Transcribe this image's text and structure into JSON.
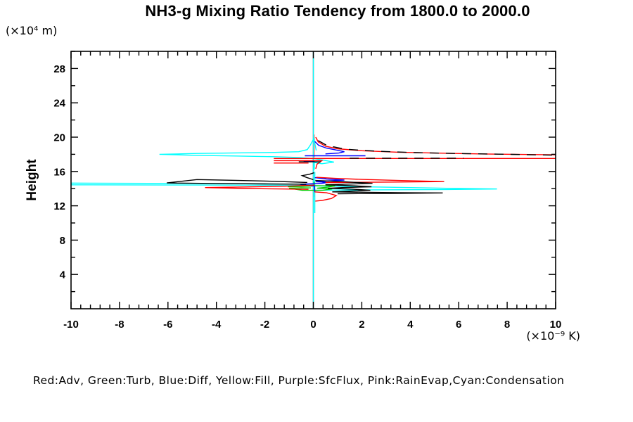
{
  "header": {
    "title": "NH3-g Mixing Ratio Tendency from 1800.0 to 2000.0"
  },
  "labels": {
    "y_unit": "(×10⁴ m)",
    "y_axis_name": "Height",
    "x_unit": "(×10⁻⁹ K)"
  },
  "legend": {
    "text": "Red:Adv, Green:Turb, Blue:Diff, Yellow:Fill, Purple:SfcFlux, Pink:RainEvap,Cyan:Condensation"
  },
  "chart_data": {
    "type": "line",
    "title": "NH3-g Mixing Ratio Tendency from 1800.0 to 2000.0",
    "xlabel": "(×10⁻⁹ K)",
    "ylabel": "Height (×10⁴ m)",
    "xlim": [
      -10,
      10
    ],
    "ylim": [
      0,
      30
    ],
    "x_major_ticks": [
      -10,
      -8,
      -6,
      -4,
      -2,
      0,
      2,
      4,
      6,
      8,
      10
    ],
    "x_minor_step": 0.4,
    "y_major_ticks": [
      4,
      8,
      12,
      16,
      20,
      24,
      28
    ],
    "y_minor_step": 2,
    "grid": false,
    "legend_position": "below-plot",
    "zero_line": {
      "x": 0,
      "color": "#00ffff"
    },
    "series": [
      {
        "name": "Fill",
        "legend_label": "Yellow:Fill",
        "color": "#ffff00",
        "segments": [
          [
            [
              0,
              30
            ],
            [
              0,
              0
            ]
          ]
        ]
      },
      {
        "name": "SfcFlux",
        "legend_label": "Purple:SfcFlux",
        "color": "#aa00aa",
        "segments": [
          [
            [
              0,
              30
            ],
            [
              0,
              0
            ]
          ]
        ]
      },
      {
        "name": "RainEvap",
        "legend_label": "Pink:RainEvap",
        "color": "#ff9e9e",
        "segments": [
          [
            [
              0.045,
              20.3
            ],
            [
              0.045,
              17.65
            ]
          ],
          [
            [
              0.045,
              14.9
            ],
            [
              0.045,
              13.05
            ]
          ]
        ]
      },
      {
        "name": "Condensation",
        "legend_label": "Cyan:Condensation",
        "color": "#00ffff",
        "segments": [
          [
            [
              0,
              30
            ],
            [
              0,
              0
            ]
          ],
          [
            [
              0.04,
              16.2
            ],
            [
              0.04,
              17.05
            ],
            [
              0.35,
              16.9
            ],
            [
              0.85,
              17.1
            ],
            [
              0.45,
              17.3
            ],
            [
              0.06,
              17.48
            ],
            [
              -0.6,
              17.62
            ],
            [
              -1.6,
              17.72
            ],
            [
              -3.2,
              17.8
            ],
            [
              -4.8,
              17.88
            ],
            [
              -6.35,
              18.0
            ],
            [
              -4.8,
              18.1
            ],
            [
              -3.2,
              18.16
            ],
            [
              -1.6,
              18.22
            ],
            [
              -0.6,
              18.3
            ],
            [
              -0.25,
              18.55
            ],
            [
              -0.12,
              19.1
            ],
            [
              0.02,
              19.85
            ],
            [
              0.08,
              19.0
            ],
            [
              0.12,
              18.45
            ]
          ],
          [
            [
              0.0,
              14.5
            ],
            [
              -2,
              14.56
            ],
            [
              -5,
              14.6
            ],
            [
              -10,
              14.65
            ],
            [
              -10,
              14.44
            ],
            [
              -5,
              14.42
            ],
            [
              -2,
              14.4
            ],
            [
              0.0,
              14.36
            ]
          ],
          [
            [
              0.05,
              14.32
            ],
            [
              1,
              14.27
            ],
            [
              2.5,
              14.2
            ],
            [
              4,
              14.12
            ],
            [
              5.5,
              14.04
            ],
            [
              7.58,
              13.96
            ],
            [
              5.5,
              13.9
            ],
            [
              4,
              13.88
            ],
            [
              2.5,
              13.86
            ],
            [
              1,
              13.84
            ],
            [
              0.08,
              13.8
            ]
          ],
          [
            [
              0.06,
              15.95
            ],
            [
              0.06,
              11.15
            ]
          ]
        ]
      },
      {
        "name": "Turb",
        "legend_label": "Green:Turb",
        "color": "#00cc00",
        "segments": [
          [
            [
              -1.05,
              14.22
            ],
            [
              -0.4,
              14.27
            ],
            [
              0.03,
              14.32
            ],
            [
              0.03,
              14.78
            ]
          ],
          [
            [
              0.03,
              14.35
            ],
            [
              0.55,
              14.33
            ],
            [
              0.9,
              14.33
            ],
            [
              0.6,
              14.17
            ],
            [
              0.15,
              14.05
            ],
            [
              0.78,
              13.97
            ],
            [
              0.4,
              13.82
            ],
            [
              -0.46,
              13.8
            ],
            [
              -0.78,
              13.95
            ],
            [
              -1.0,
              14.05
            ],
            [
              -0.5,
              14.1
            ],
            [
              -0.1,
              14.08
            ]
          ]
        ]
      },
      {
        "name": "Diff",
        "legend_label": "Blue:Diff",
        "color": "#0000ff",
        "segments": [
          [
            [
              0.06,
              19.5
            ],
            [
              0.22,
              19.05
            ],
            [
              0.55,
              18.72
            ],
            [
              0.95,
              18.5
            ],
            [
              1.28,
              18.3
            ],
            [
              1.05,
              18.15
            ],
            [
              0.5,
              18.05
            ]
          ],
          [
            [
              -0.35,
              17.83
            ],
            [
              2.15,
              17.83
            ]
          ],
          [
            [
              -0.4,
              17.18
            ],
            [
              0.05,
              17.18
            ]
          ],
          [
            [
              0.06,
              15.28
            ],
            [
              0.55,
              15.12
            ],
            [
              1.28,
              15.0
            ],
            [
              0.6,
              14.9
            ],
            [
              0.1,
              14.8
            ],
            [
              0.64,
              14.73
            ],
            [
              0.35,
              14.62
            ],
            [
              -0.55,
              14.5
            ],
            [
              -0.26,
              14.4
            ],
            [
              0.05,
              14.32
            ],
            [
              0.06,
              13.6
            ]
          ]
        ]
      },
      {
        "name": "Adv",
        "legend_label": "Red:Adv",
        "color": "#ff0000",
        "segments": [
          [
            [
              0.1,
              20.0
            ],
            [
              0.2,
              19.45
            ],
            [
              0.5,
              18.95
            ],
            [
              1,
              18.65
            ],
            [
              2,
              18.42
            ],
            [
              3.5,
              18.25
            ],
            [
              5,
              18.15
            ],
            [
              7,
              18.04
            ],
            [
              10,
              17.94
            ]
          ],
          [
            [
              -1.63,
              17.52
            ],
            [
              10,
              17.52
            ]
          ],
          [
            [
              -1.63,
              17.26
            ],
            [
              0.35,
              17.26
            ],
            [
              0.15,
              16.85
            ],
            [
              0.1,
              16.32
            ]
          ],
          [
            [
              -1.63,
              16.98
            ],
            [
              -0.2,
              16.98
            ]
          ],
          [
            [
              0.12,
              15.32
            ],
            [
              0.9,
              15.2
            ],
            [
              2,
              15.07
            ],
            [
              3.5,
              14.95
            ],
            [
              5.4,
              14.82
            ],
            [
              3.5,
              14.77
            ],
            [
              1.8,
              14.74
            ],
            [
              0.5,
              14.71
            ]
          ],
          [
            [
              0.05,
              14.42
            ],
            [
              -1.2,
              14.28
            ],
            [
              -2.8,
              14.2
            ],
            [
              -4.47,
              14.12
            ],
            [
              -2.8,
              14.02
            ],
            [
              -1.2,
              13.96
            ],
            [
              -0.2,
              13.92
            ]
          ],
          [
            [
              0.05,
              13.62
            ],
            [
              0.55,
              13.52
            ],
            [
              0.95,
              13.2
            ],
            [
              0.75,
              12.85
            ],
            [
              0.35,
              12.62
            ],
            [
              0.08,
              12.55
            ]
          ]
        ]
      },
      {
        "name": "Black (unlabeled net)",
        "legend_label": "",
        "color": "#000000",
        "segments": [
          [
            [
              0.2,
              19.6
            ],
            [
              0.55,
              19.05
            ],
            [
              1.3,
              18.6
            ],
            [
              2.6,
              18.37
            ],
            [
              4.2,
              18.2
            ],
            [
              6.2,
              18.08
            ],
            [
              8.2,
              17.99
            ],
            [
              10,
              17.89
            ]
          ],
          [
            [
              1.5,
              17.55
            ],
            [
              6.2,
              17.55
            ]
          ],
          [
            [
              -0.6,
              17.12
            ],
            [
              0.3,
              17.12
            ]
          ],
          [
            [
              -0.25,
              14.72
            ],
            [
              -1.6,
              14.85
            ],
            [
              -3.2,
              14.97
            ],
            [
              -4.8,
              15.06
            ],
            [
              -6.05,
              14.66
            ],
            [
              -4,
              14.6
            ],
            [
              -2,
              14.55
            ],
            [
              -0.3,
              14.52
            ]
          ],
          [
            [
              0.0,
              15.05
            ],
            [
              -0.28,
              15.3
            ],
            [
              -0.46,
              15.52
            ],
            [
              -0.15,
              15.68
            ],
            [
              0.03,
              15.85
            ]
          ],
          [
            [
              0.08,
              14.95
            ],
            [
              0.9,
              14.85
            ],
            [
              1.6,
              14.75
            ],
            [
              2.44,
              14.62
            ],
            [
              1.3,
              14.52
            ],
            [
              0.5,
              14.45
            ],
            [
              1.5,
              14.35
            ],
            [
              2.4,
              14.22
            ],
            [
              1.2,
              14.12
            ],
            [
              0.6,
              14.04
            ],
            [
              1.6,
              13.94
            ],
            [
              2.35,
              13.8
            ],
            [
              1.3,
              13.7
            ],
            [
              0.78,
              13.62
            ],
            [
              2.2,
              13.57
            ],
            [
              3.5,
              13.53
            ],
            [
              5.34,
              13.5
            ],
            [
              3.6,
              13.45
            ],
            [
              2.0,
              13.42
            ],
            [
              1.0,
              13.4
            ]
          ]
        ],
        "dash_segments": [
          0,
          1
        ]
      }
    ]
  }
}
